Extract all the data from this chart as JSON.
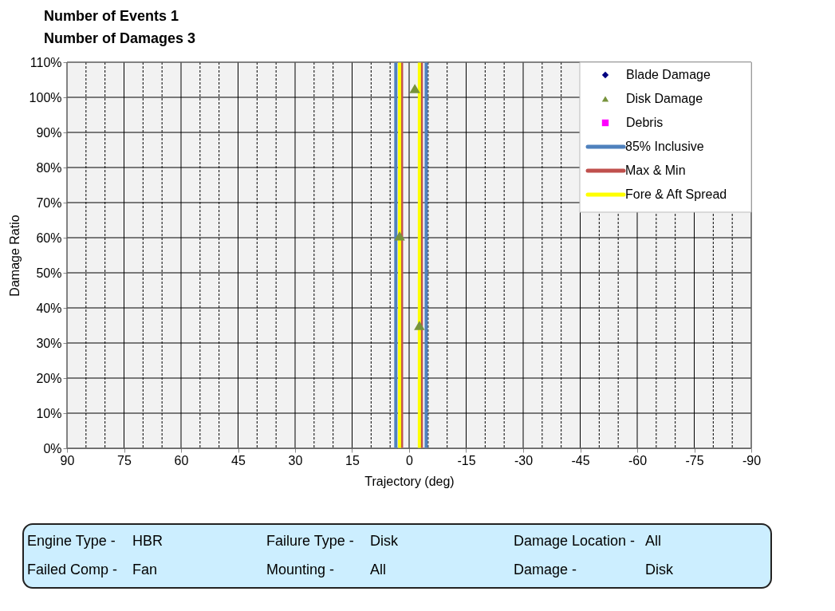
{
  "chart_data": {
    "type": "scatter",
    "title": "Number of Events 1",
    "subtitle": "Number of Damages 3",
    "xlabel": "Trajectory (deg)",
    "ylabel": "Damage Ratio",
    "xlim": [
      90,
      -90
    ],
    "xticks": [
      90,
      {
        "value": 85,
        "label": null
      },
      {
        "value": 80,
        "label": null
      },
      75,
      {
        "value": 70,
        "label": null
      },
      {
        "value": 65,
        "label": null
      },
      60,
      {
        "value": 55,
        "label": null
      },
      {
        "value": 50,
        "label": null
      },
      45,
      {
        "value": 40,
        "label": null
      },
      {
        "value": 35,
        "label": null
      },
      30,
      {
        "value": 25,
        "label": null
      },
      {
        "value": 20,
        "label": null
      },
      15,
      {
        "value": 10,
        "label": null
      },
      {
        "value": 5,
        "label": null
      },
      0,
      {
        "value": -5,
        "label": null
      },
      {
        "value": -10,
        "label": null
      },
      -15,
      {
        "value": -20,
        "label": null
      },
      {
        "value": -25,
        "label": null
      },
      -30,
      {
        "value": -35,
        "label": null
      },
      {
        "value": -40,
        "label": null
      },
      -45,
      {
        "value": -50,
        "label": null
      },
      {
        "value": -55,
        "label": null
      },
      -60,
      {
        "value": -65,
        "label": null
      },
      {
        "value": -70,
        "label": null
      },
      -75,
      {
        "value": -80,
        "label": null
      },
      {
        "value": -85,
        "label": null
      },
      -90
    ],
    "ylim": [
      0,
      110
    ],
    "yticks": [
      {
        "value": 0,
        "label": "0%"
      },
      {
        "value": 10,
        "label": "10%"
      },
      {
        "value": 20,
        "label": "20%"
      },
      {
        "value": 30,
        "label": "30%"
      },
      {
        "value": 40,
        "label": "40%"
      },
      {
        "value": 50,
        "label": "50%"
      },
      {
        "value": 60,
        "label": "60%"
      },
      {
        "value": 70,
        "label": "70%"
      },
      {
        "value": 80,
        "label": "80%"
      },
      {
        "value": 90,
        "label": "90%"
      },
      {
        "value": 100,
        "label": "100%"
      },
      {
        "value": 110,
        "label": "110%"
      }
    ],
    "grid": true,
    "legend": "top right",
    "series": [
      {
        "name": "Blade Damage",
        "marker": "diamond",
        "color": "#000080"
      },
      {
        "name": "Disk Damage",
        "marker": "triangle",
        "color": "#77933c",
        "x": [
          -1.5,
          2.5,
          -2.7
        ],
        "values": [
          102.5,
          60.5,
          35
        ]
      },
      {
        "name": "Debris",
        "marker": "square",
        "color": "#ff00ff"
      },
      {
        "name": "85% Inclusive",
        "type": "line",
        "color": "#4f81bd",
        "x": [
          3.5,
          3.5,
          null,
          -4.5,
          -4.5
        ],
        "values": [
          0,
          110,
          null,
          0,
          110
        ]
      },
      {
        "name": "Max & Min",
        "type": "line",
        "color": "#c0504d",
        "x": [
          2.0,
          2.0,
          null,
          -3.2,
          -3.2
        ],
        "values": [
          0,
          110,
          null,
          0,
          110
        ]
      },
      {
        "name": "Fore & Aft Spread",
        "type": "line",
        "color": "#ffff00",
        "x": [
          2.5,
          2.5,
          null,
          -2.7,
          -2.7
        ],
        "values": [
          0,
          110,
          null,
          0,
          110
        ]
      }
    ],
    "annotations": [
      "Engine Type -",
      "HBR",
      "Failure Type -",
      "Disk",
      "Damage Location -",
      "All",
      "Failed Comp -",
      "Fan",
      "Mounting -",
      "All",
      "Damage -",
      "Disk"
    ]
  }
}
